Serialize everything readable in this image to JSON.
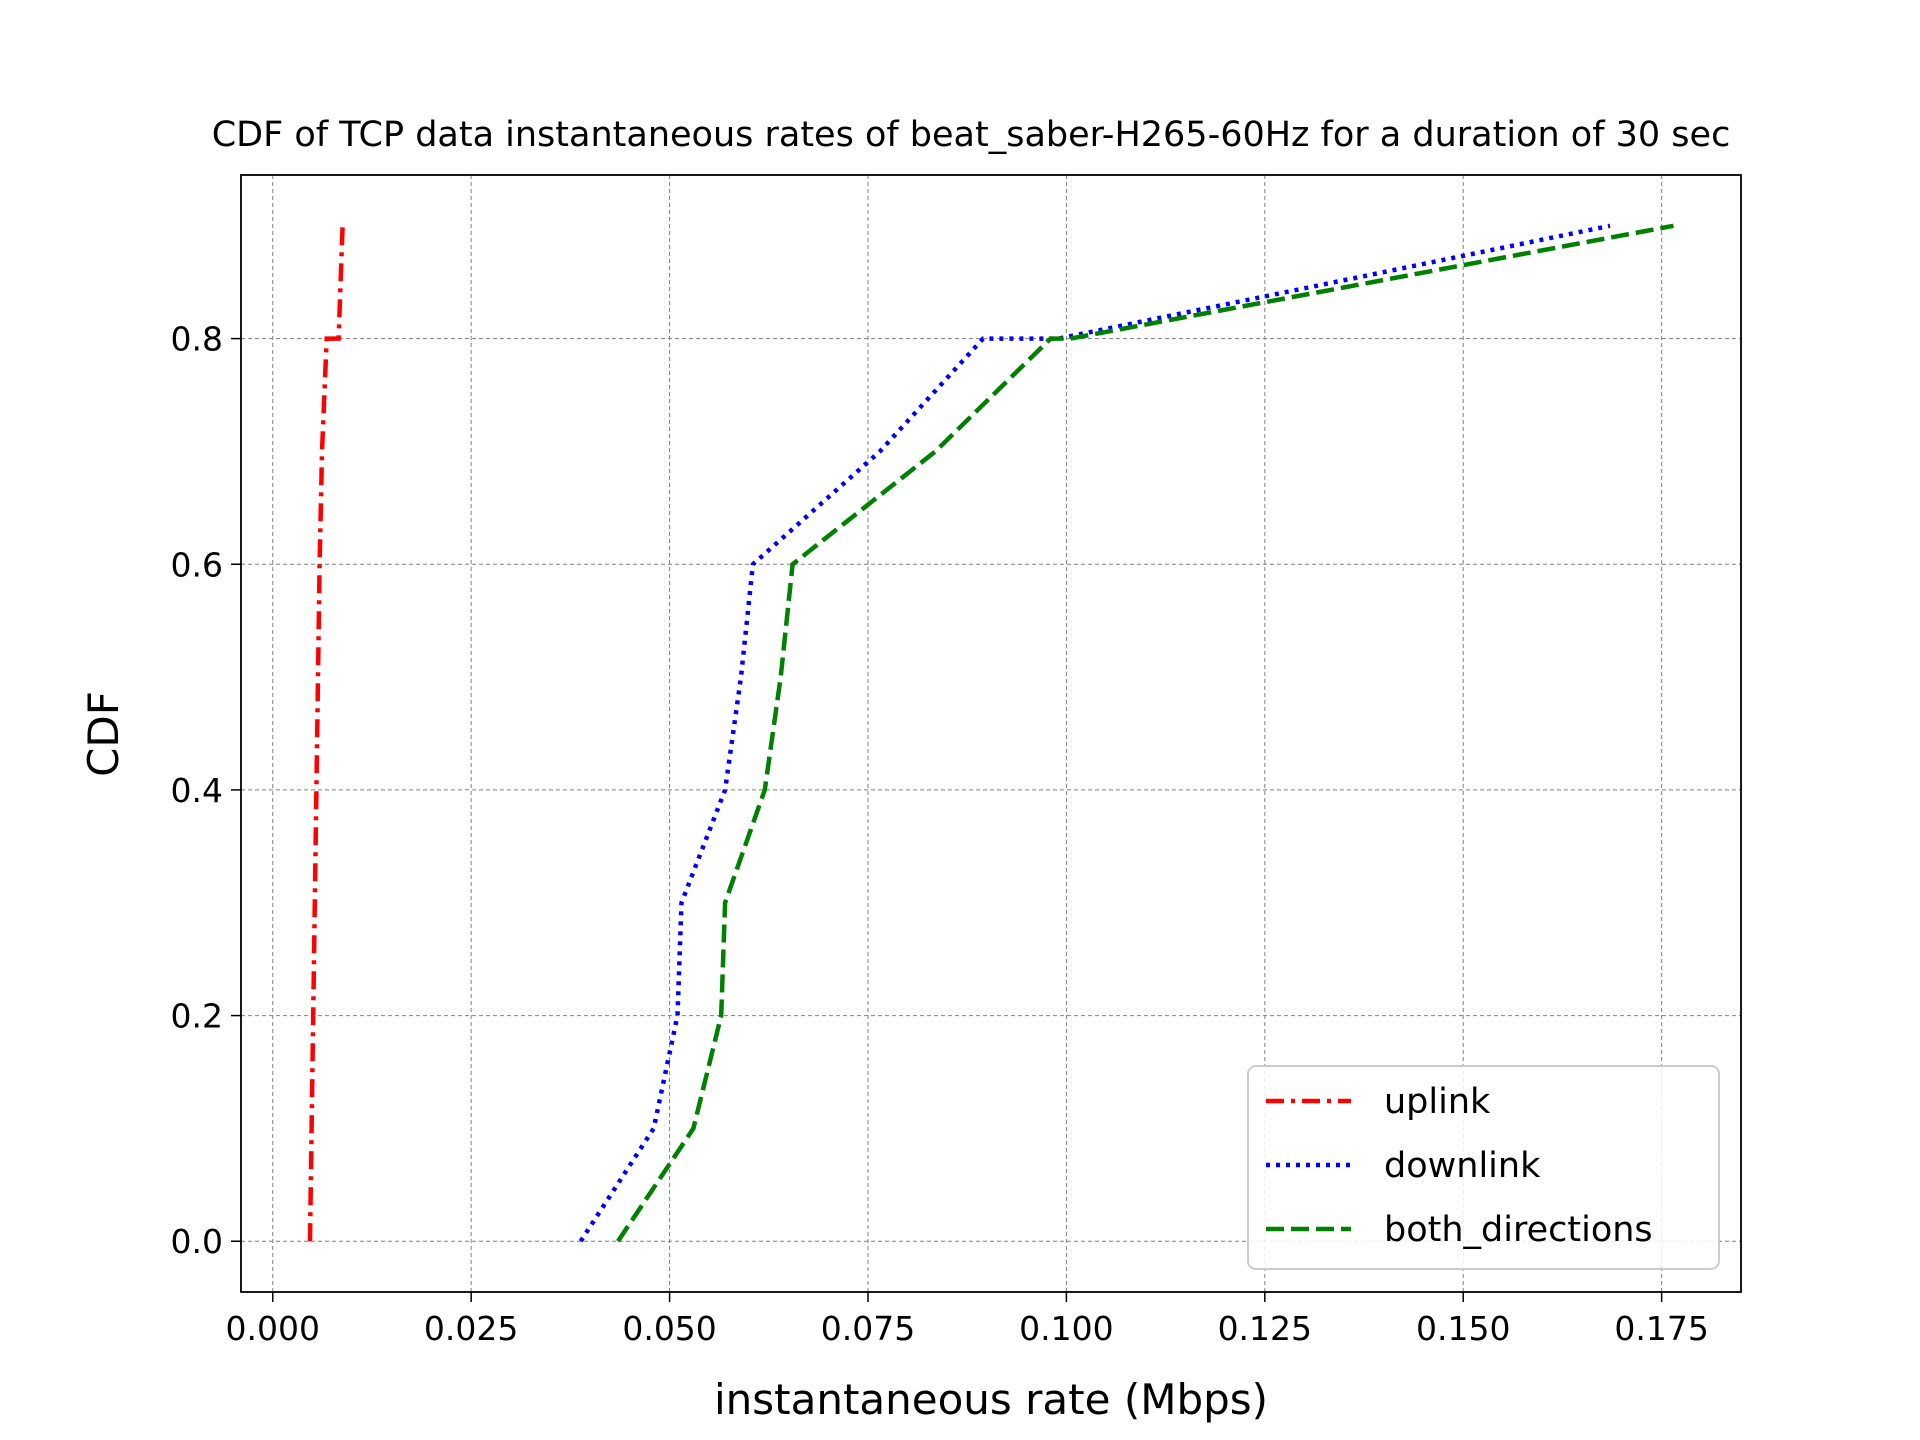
{
  "chart_data": {
    "type": "line",
    "title": "CDF of TCP data instantaneous rates of beat_saber-H265-60Hz for a duration of 30 sec",
    "xlabel": "instantaneous rate (Mbps)",
    "ylabel": "CDF",
    "xlim": [
      -0.004,
      0.185
    ],
    "ylim": [
      -0.045,
      0.945
    ],
    "xticks": [
      0.0,
      0.025,
      0.05,
      0.075,
      0.1,
      0.125,
      0.15,
      0.175
    ],
    "xtick_labels": [
      "0.000",
      "0.025",
      "0.050",
      "0.075",
      "0.100",
      "0.125",
      "0.150",
      "0.175"
    ],
    "yticks": [
      0.0,
      0.2,
      0.4,
      0.6,
      0.8
    ],
    "ytick_labels": [
      "0.0",
      "0.2",
      "0.4",
      "0.6",
      "0.8"
    ],
    "grid": true,
    "legend_position": "bottom-right",
    "series": [
      {
        "name": "uplink",
        "color": "#ff0000",
        "style": "dashdot",
        "x": [
          0.0047,
          0.0049,
          0.0051,
          0.0053,
          0.0055,
          0.0057,
          0.0059,
          0.0062,
          0.0068,
          0.0083,
          0.0088
        ],
        "y": [
          0.0,
          0.1,
          0.2,
          0.3,
          0.4,
          0.5,
          0.6,
          0.7,
          0.8,
          0.8,
          0.9
        ]
      },
      {
        "name": "downlink",
        "color": "#0000ff",
        "style": "dotted",
        "x": [
          0.0388,
          0.048,
          0.051,
          0.0515,
          0.057,
          0.059,
          0.0605,
          0.0765,
          0.0895,
          0.099,
          0.1685
        ],
        "y": [
          0.0,
          0.1,
          0.2,
          0.3,
          0.4,
          0.5,
          0.6,
          0.7,
          0.8,
          0.8,
          0.9
        ]
      },
      {
        "name": "both_directions",
        "color": "#008000",
        "style": "dashed",
        "x": [
          0.0435,
          0.053,
          0.0565,
          0.057,
          0.062,
          0.064,
          0.0655,
          0.0835,
          0.098,
          0.1005,
          0.1765
        ],
        "y": [
          0.0,
          0.1,
          0.2,
          0.3,
          0.4,
          0.5,
          0.6,
          0.7,
          0.8,
          0.8,
          0.9
        ]
      }
    ]
  }
}
